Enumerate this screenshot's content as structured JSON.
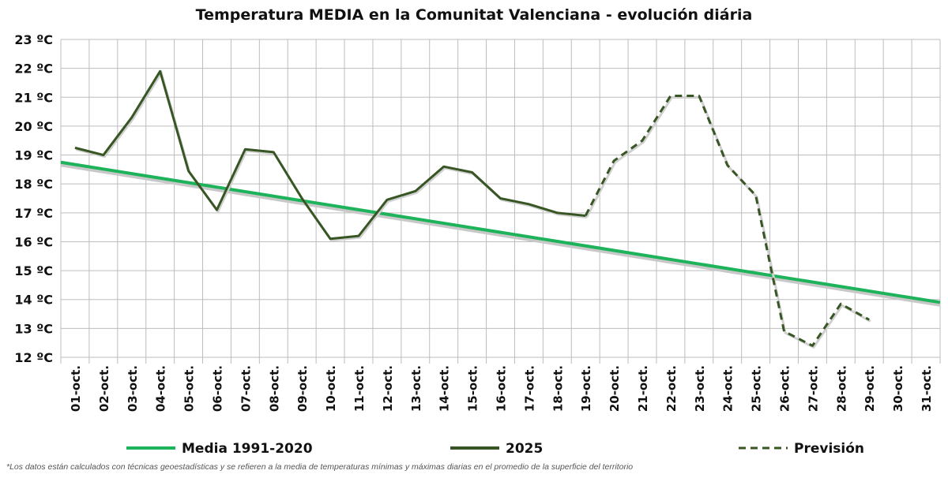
{
  "chart_data": {
    "type": "line",
    "title": "Temperatura MEDIA en la Comunitat Valenciana - evolución diária",
    "categories": [
      "01-oct.",
      "02-oct.",
      "03-oct.",
      "04-oct.",
      "05-oct.",
      "06-oct.",
      "07-oct.",
      "08-oct.",
      "09-oct.",
      "10-oct.",
      "11-oct.",
      "12-oct.",
      "13-oct.",
      "14-oct.",
      "15-oct.",
      "16-oct.",
      "17-oct.",
      "18-oct.",
      "19-oct.",
      "20-oct.",
      "21-oct.",
      "22-oct.",
      "23-oct.",
      "24-oct.",
      "25-oct.",
      "26-oct.",
      "27-oct.",
      "28-oct.",
      "29-oct.",
      "30-oct.",
      "31-oct."
    ],
    "yticks": [
      "12 ºC",
      "13 ºC",
      "14 ºC",
      "15 ºC",
      "16 ºC",
      "17 ºC",
      "18 ºC",
      "19 ºC",
      "20 ºC",
      "21 ºC",
      "22 ºC",
      "23 ºC"
    ],
    "ylim": [
      12,
      23
    ],
    "grid": true,
    "legend_placement": "bottom",
    "series": [
      {
        "name": "Media 1991-2020",
        "color": "#1db35a",
        "style": "solid",
        "values": [
          18.67,
          18.52,
          18.36,
          18.2,
          18.05,
          17.89,
          17.74,
          17.58,
          17.42,
          17.27,
          17.11,
          16.96,
          16.8,
          16.64,
          16.49,
          16.33,
          16.17,
          16.02,
          15.86,
          15.7,
          15.55,
          15.39,
          15.23,
          15.08,
          14.92,
          14.76,
          14.61,
          14.45,
          14.3,
          14.14,
          13.98
        ]
      },
      {
        "name": "2025",
        "color": "#375623",
        "style": "solid",
        "values": [
          19.25,
          19.0,
          20.3,
          21.9,
          18.45,
          17.1,
          19.2,
          19.1,
          17.5,
          16.1,
          16.2,
          17.45,
          17.75,
          18.6,
          18.4,
          17.5,
          17.3,
          17.0,
          16.9,
          null,
          null,
          null,
          null,
          null,
          null,
          null,
          null,
          null,
          null,
          null,
          null
        ]
      },
      {
        "name": "Previsión",
        "color": "#375623",
        "style": "dashed",
        "values": [
          null,
          null,
          null,
          null,
          null,
          null,
          null,
          null,
          null,
          null,
          null,
          null,
          null,
          null,
          null,
          null,
          null,
          null,
          16.9,
          18.8,
          19.5,
          21.05,
          21.05,
          18.65,
          17.6,
          12.9,
          12.4,
          13.85,
          13.3,
          null,
          null
        ]
      }
    ]
  },
  "footnote": "*Los datos están calculados con técnicas geoestadísticas y se refieren a la media de temperaturas mínimas y máximas diarias en el promedio de la superficie del territorio"
}
